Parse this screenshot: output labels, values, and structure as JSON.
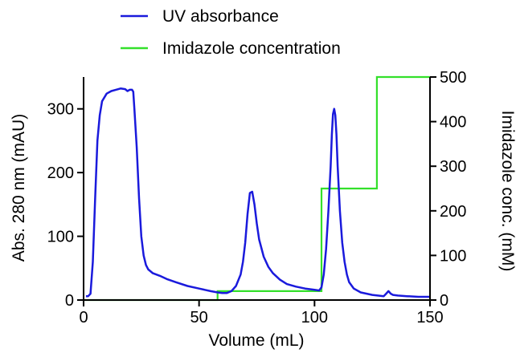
{
  "chart_data": {
    "type": "line",
    "title": "",
    "xlabel": "Volume (mL)",
    "ylabel": "Abs. 280 nm (mAU)",
    "y2label": "Imidazole conc. (mM)",
    "xlim": [
      0,
      150
    ],
    "ylim": [
      0,
      350
    ],
    "y2lim": [
      0,
      500
    ],
    "xticks": [
      0,
      50,
      100,
      150
    ],
    "yticks": [
      0,
      100,
      200,
      300
    ],
    "y2ticks": [
      0,
      100,
      200,
      300,
      400,
      500
    ],
    "grid": false,
    "legend_position": "top",
    "series": [
      {
        "name": "UV absorbance",
        "axis": "left",
        "color": "#1a1adc",
        "x": [
          1,
          2,
          3,
          4,
          5,
          6,
          7,
          8,
          10,
          12,
          14,
          16,
          18,
          19,
          20,
          21,
          21.5,
          22,
          23,
          24,
          25,
          26,
          27,
          28,
          30,
          33,
          36,
          40,
          45,
          50,
          55,
          58,
          60,
          62,
          64,
          66,
          68,
          69,
          70,
          71,
          72,
          73,
          74,
          75,
          76,
          78,
          80,
          82,
          85,
          88,
          92,
          96,
          100,
          102,
          103,
          104,
          105,
          106,
          107,
          107.5,
          108,
          108.5,
          109,
          109.5,
          110,
          111,
          112,
          113,
          114,
          115,
          117,
          120,
          125,
          130,
          131,
          132,
          133,
          134,
          136,
          140,
          145,
          150
        ],
        "y": [
          6,
          6,
          10,
          60,
          160,
          250,
          290,
          312,
          324,
          328,
          330,
          332,
          331,
          328,
          330,
          330,
          327,
          300,
          240,
          160,
          100,
          70,
          55,
          48,
          42,
          38,
          33,
          28,
          22,
          18,
          14,
          12,
          11,
          11,
          14,
          22,
          40,
          60,
          90,
          135,
          168,
          170,
          150,
          120,
          95,
          68,
          52,
          42,
          32,
          25,
          21,
          18,
          16,
          15,
          20,
          40,
          80,
          140,
          210,
          260,
          292,
          300,
          290,
          260,
          210,
          140,
          90,
          60,
          40,
          28,
          18,
          12,
          8,
          6,
          10,
          14,
          10,
          8,
          7,
          6,
          5,
          5
        ]
      },
      {
        "name": "Imidazole concentration",
        "axis": "right",
        "color": "#33e02a",
        "x": [
          0,
          58,
          58,
          103,
          103,
          127,
          127,
          150
        ],
        "y": [
          0,
          0,
          20,
          20,
          250,
          250,
          500,
          500
        ]
      }
    ]
  }
}
